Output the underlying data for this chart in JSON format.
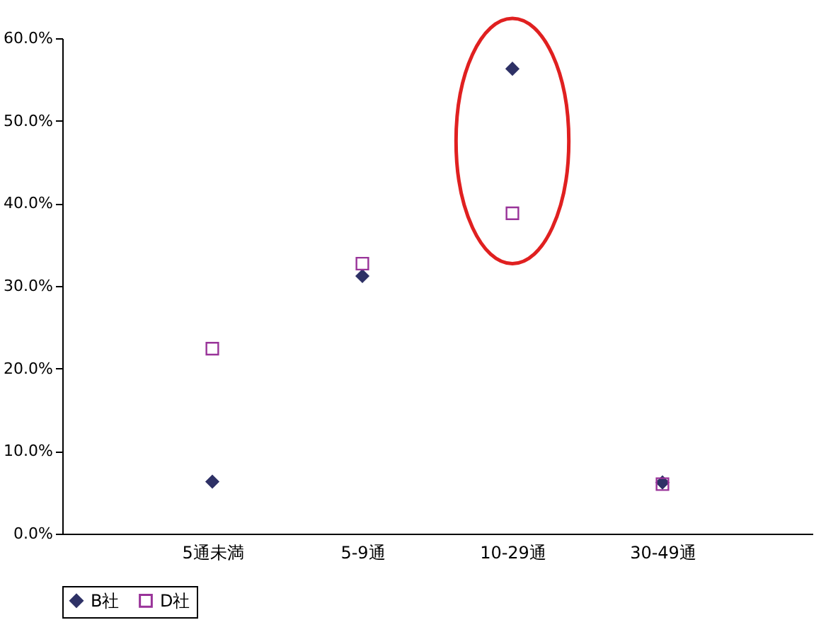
{
  "chart_data": {
    "type": "scatter",
    "categories": [
      null,
      "5通未満",
      "5-9通",
      "10-29通",
      "30-49通",
      null
    ],
    "series": [
      {
        "name": "B社",
        "color": "#2e3166",
        "marker": "diamond",
        "values": [
          null,
          6.3,
          31.2,
          56.3,
          6.2,
          null
        ]
      },
      {
        "name": "D社",
        "color": "#993399",
        "marker": "square",
        "values": [
          null,
          22.4,
          32.7,
          38.8,
          6.0,
          null
        ]
      }
    ],
    "ylim": [
      0,
      60
    ],
    "yticks": [
      {
        "value": 0,
        "label": "0.0%"
      },
      {
        "value": 10,
        "label": "10.0%"
      },
      {
        "value": 20,
        "label": "20.0%"
      },
      {
        "value": 30,
        "label": "30.0%"
      },
      {
        "value": 40,
        "label": "40.0%"
      },
      {
        "value": 50,
        "label": "50.0%"
      },
      {
        "value": 60,
        "label": "60.0%"
      }
    ],
    "grid": false,
    "legend": "bottom"
  }
}
